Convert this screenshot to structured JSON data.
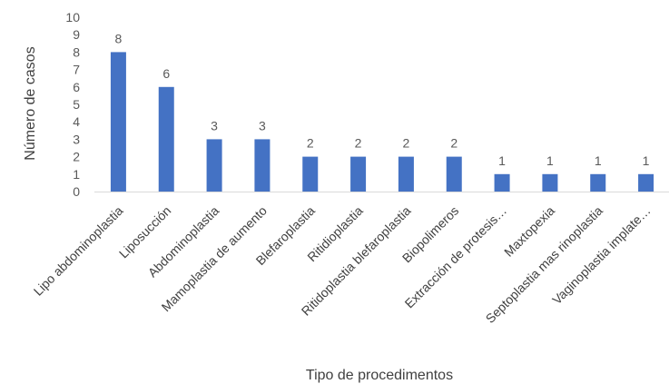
{
  "chart_data": {
    "type": "bar",
    "categories": [
      "Lipo abdominoplastia",
      "Liposucción",
      "Abdominoplastia",
      "Mamoplastia de aumento",
      "Blefaroplastia",
      "Ritidioplastia",
      "Ritidoplastia blefaroplastia",
      "Biopolimeros",
      "Extracción de protesis…",
      "Maxtopexia",
      "Septoplastia mas rinoplastia",
      "Vaginoplastia implate…"
    ],
    "values": [
      8,
      6,
      3,
      3,
      2,
      2,
      2,
      2,
      1,
      1,
      1,
      1
    ],
    "yticks": [
      "0",
      "1",
      "2",
      "3",
      "4",
      "5",
      "6",
      "7",
      "8",
      "9",
      "10"
    ],
    "ylim": [
      0,
      10
    ],
    "xlabel": "Tipo de procedimentos",
    "ylabel": "Número de casos",
    "bar_color": "#4472c4",
    "grid": false,
    "legend": "none"
  }
}
